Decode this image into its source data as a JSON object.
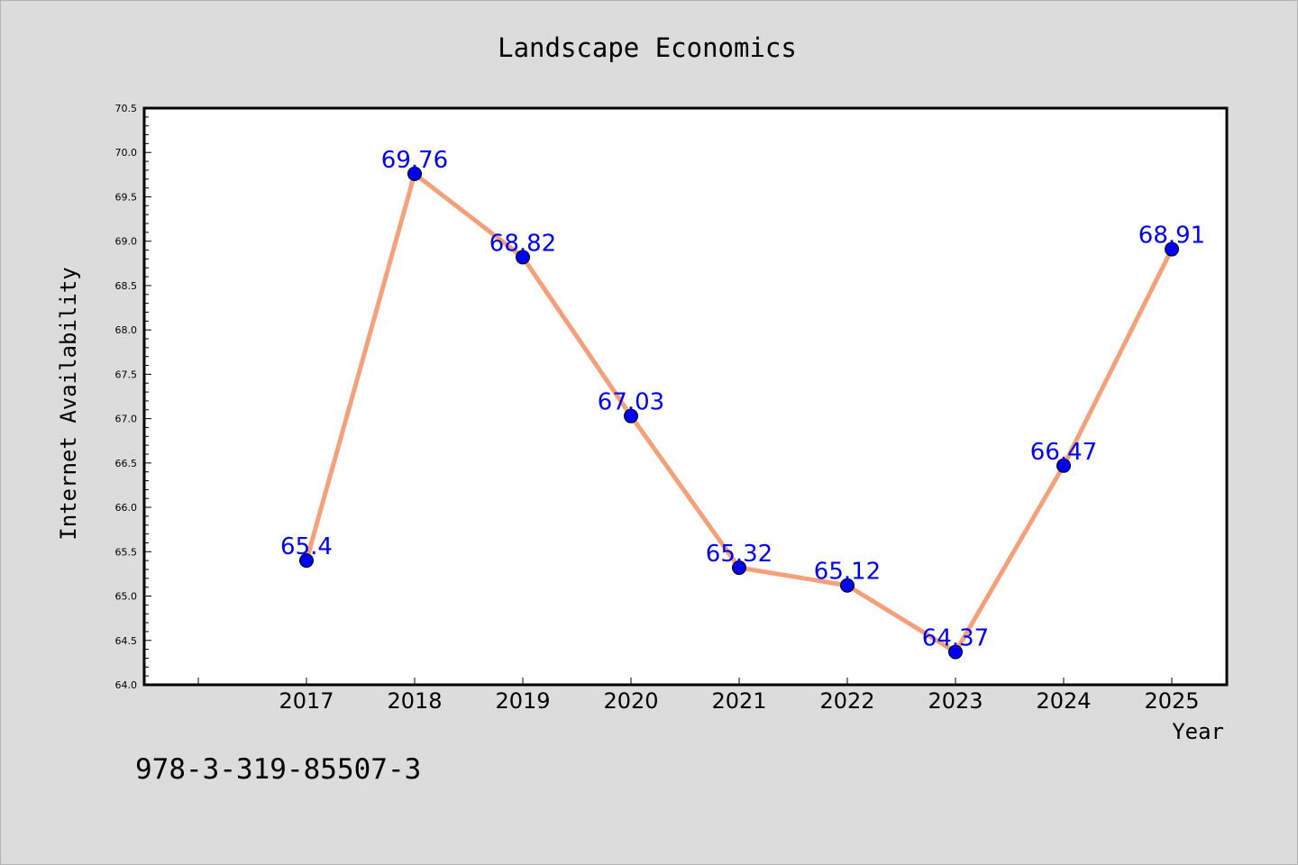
{
  "chart_data": {
    "type": "line",
    "title": "Landscape Economics",
    "xlabel": "Year",
    "ylabel": "Internet Availability",
    "categories": [
      "2017",
      "2018",
      "2019",
      "2020",
      "2021",
      "2022",
      "2023",
      "2024",
      "2025"
    ],
    "series": [
      {
        "values": [
          65.4,
          69.76,
          68.82,
          67.03,
          65.32,
          65.12,
          64.37,
          66.47,
          68.91
        ]
      }
    ],
    "data_labels": [
      "65.4",
      "69.76",
      "68.82",
      "67.03",
      "65.32",
      "65.12",
      "64.37",
      "66.47",
      "68.91"
    ],
    "ylim": [
      64.0,
      70.5
    ],
    "yticks": [
      "64.0",
      "64.5",
      "65.0",
      "65.5",
      "66.0",
      "66.5",
      "67.0",
      "67.5",
      "68.0",
      "68.5",
      "69.0",
      "69.5",
      "70.0",
      "70.5"
    ],
    "grid": false,
    "legend": "none",
    "colors": {
      "line": "#f4a07a",
      "marker": "#0000ee",
      "label": "#0000ee",
      "background": "#dcdcdc",
      "plot_background": "#ffffff"
    }
  },
  "footer": {
    "isbn": "978-3-319-85507-3"
  }
}
